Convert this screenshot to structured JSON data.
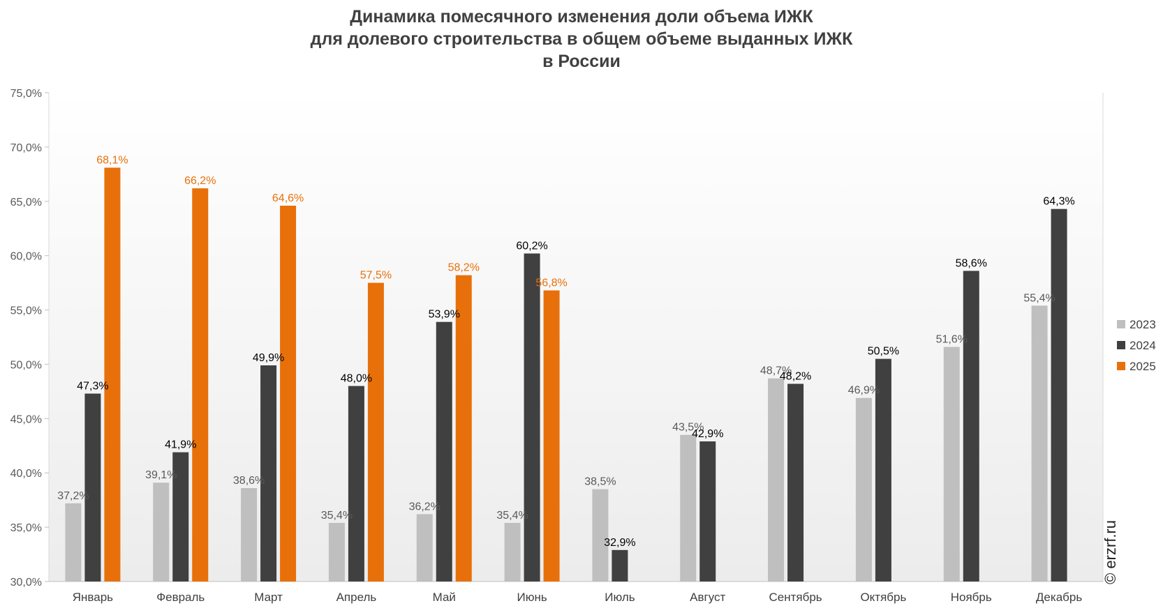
{
  "chart_data": {
    "type": "bar",
    "title_lines": [
      "Динамика помесячного изменения доли объема ИЖК",
      "для долевого строительства в общем объеме выданных ИЖК",
      "в России"
    ],
    "categories": [
      "Январь",
      "Февраль",
      "Март",
      "Апрель",
      "Май",
      "Июнь",
      "Июль",
      "Август",
      "Сентябрь",
      "Октябрь",
      "Ноябрь",
      "Декабрь"
    ],
    "series": [
      {
        "name": "2023",
        "color": "#bfbfbf",
        "label_color": "#595959",
        "values": [
          37.2,
          39.1,
          38.6,
          35.4,
          36.2,
          35.4,
          38.5,
          43.5,
          48.7,
          46.9,
          51.6,
          55.4
        ],
        "labels": [
          "37,2%",
          "39,1%",
          "38,6%",
          "35,4%",
          "36,2%",
          "35,4%",
          "38,5%",
          "43,5%",
          "48,7%",
          "46,9%",
          "51,6%",
          "55,4%"
        ]
      },
      {
        "name": "2024",
        "color": "#404040",
        "label_color": "#000000",
        "values": [
          47.3,
          41.9,
          49.9,
          48.0,
          53.9,
          60.2,
          32.9,
          42.9,
          48.2,
          50.5,
          58.6,
          64.3
        ],
        "labels": [
          "47,3%",
          "41,9%",
          "49,9%",
          "48,0%",
          "53,9%",
          "60,2%",
          "32,9%",
          "42,9%",
          "48,2%",
          "50,5%",
          "58,6%",
          "64,3%"
        ]
      },
      {
        "name": "2025",
        "color": "#e8700a",
        "label_color": "#e8700a",
        "values": [
          68.1,
          66.2,
          64.6,
          57.5,
          58.2,
          56.8,
          null,
          null,
          null,
          null,
          null,
          null
        ],
        "labels": [
          "68,1%",
          "66,2%",
          "64,6%",
          "57,5%",
          "58,2%",
          "56,8%",
          null,
          null,
          null,
          null,
          null,
          null
        ]
      }
    ],
    "ylim": [
      30,
      75
    ],
    "yticks": [
      30,
      35,
      40,
      45,
      50,
      55,
      60,
      65,
      70,
      75
    ],
    "ytick_labels": [
      "30,0%",
      "35,0%",
      "40,0%",
      "45,0%",
      "50,0%",
      "55,0%",
      "60,0%",
      "65,0%",
      "70,0%",
      "75,0%"
    ],
    "grid": false,
    "legend_position": "right"
  },
  "watermark": "© erzrf.ru"
}
